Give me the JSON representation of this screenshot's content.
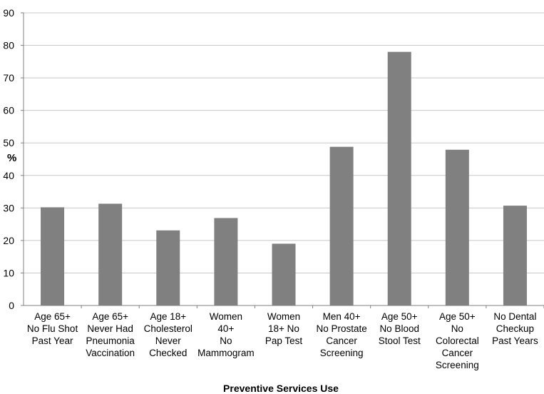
{
  "chart_data": {
    "type": "bar",
    "categories": [
      [
        "Age 65+",
        "No Flu Shot",
        "Past Year"
      ],
      [
        "Age 65+",
        "Never Had",
        "Pneumonia",
        "Vaccination"
      ],
      [
        "Age 18+",
        "Cholesterol",
        "Never",
        "Checked"
      ],
      [
        "Women",
        "40+",
        "No",
        "Mammogram"
      ],
      [
        "Women",
        "18+ No",
        "Pap Test"
      ],
      [
        "Men 40+",
        "No Prostate",
        "Cancer",
        "Screening"
      ],
      [
        "Age 50+",
        "No Blood",
        "Stool Test"
      ],
      [
        "Age 50+",
        "No",
        "Colorectal",
        "Cancer",
        "Screening"
      ],
      [
        "No Dental",
        "Checkup",
        "Past Years"
      ]
    ],
    "values": [
      30.2,
      31.3,
      23.1,
      26.9,
      19.0,
      48.8,
      78.0,
      47.9,
      30.7
    ],
    "title": "",
    "xlabel": "Preventive Services Use",
    "ylabel": "%",
    "ylim": [
      0,
      90
    ],
    "yticks": [
      0,
      10,
      20,
      30,
      40,
      50,
      60,
      70,
      80,
      90
    ],
    "grid": true,
    "legend": "none",
    "colors": {
      "bar": "#808080",
      "grid": "#c8c8c8",
      "axis": "#808080"
    }
  }
}
